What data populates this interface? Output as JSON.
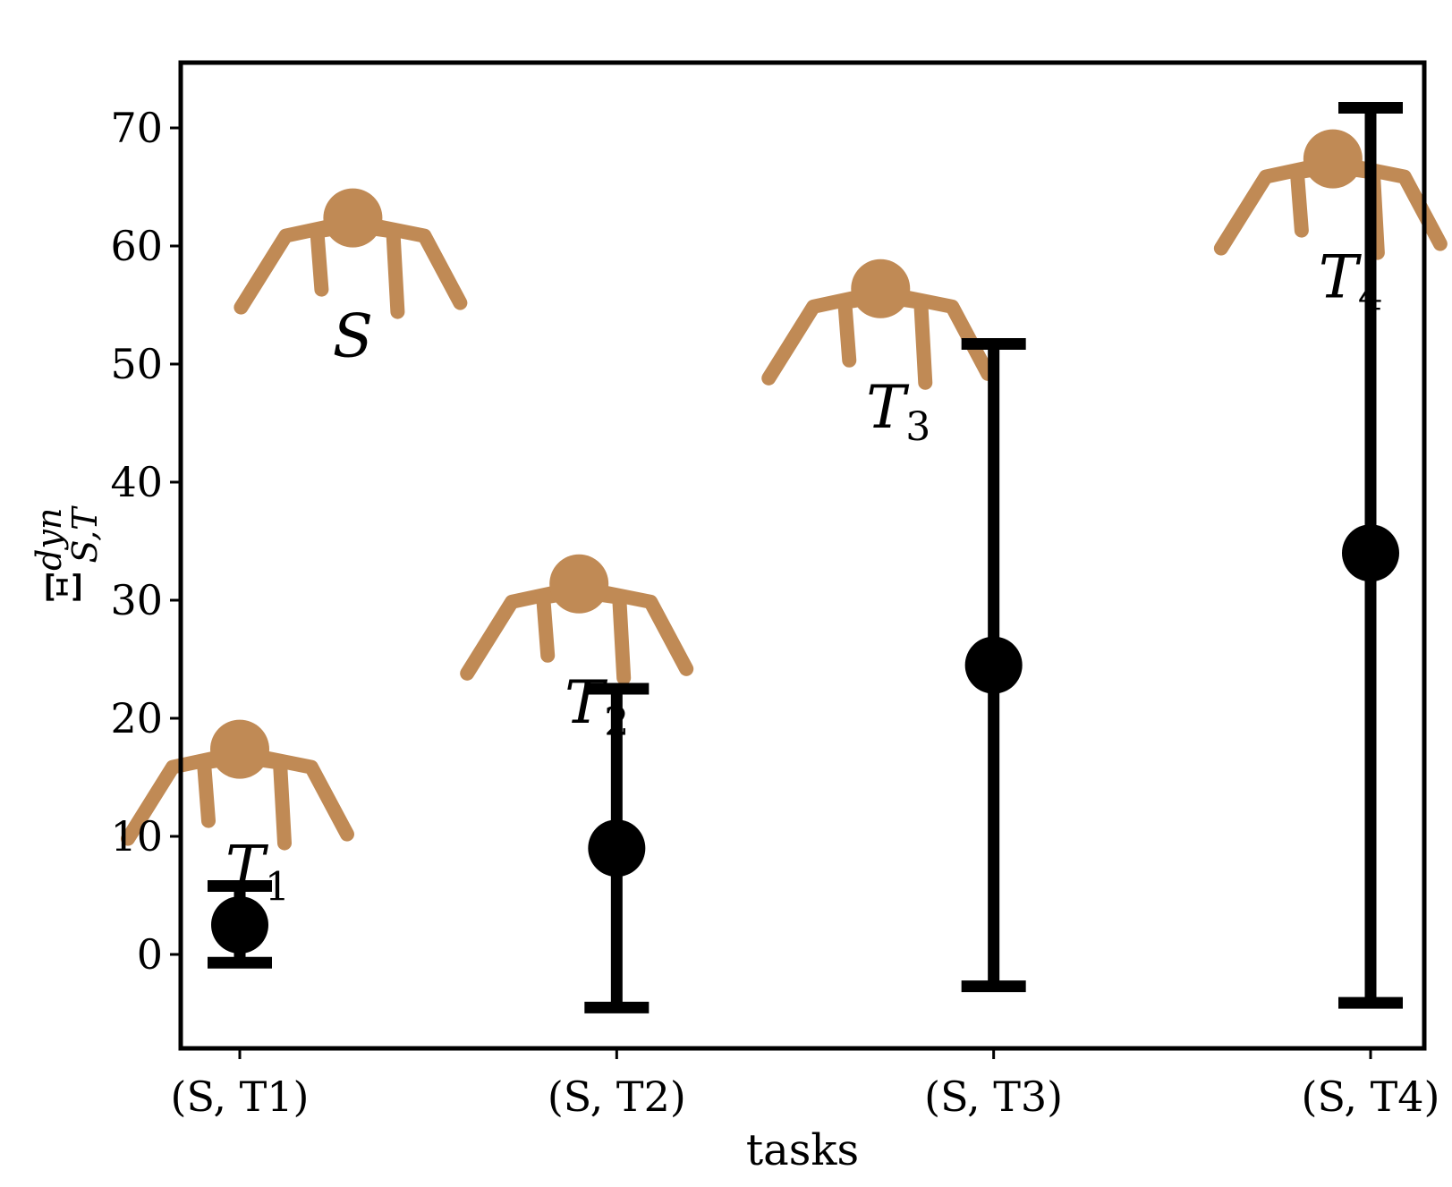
{
  "chart_data": {
    "type": "scatter",
    "xlabel": "tasks",
    "ylabel": "Ξ^{dyn}_{S,T}",
    "ylim": [
      -8,
      75
    ],
    "yticks": [
      0,
      10,
      20,
      30,
      40,
      50,
      60,
      70
    ],
    "ytick_labels": [
      "0",
      "10",
      "20",
      "30",
      "40",
      "50",
      "60",
      "70"
    ],
    "categories": [
      "(S, T1)",
      "(S, T2)",
      "(S, T3)",
      "(S, T4)"
    ],
    "series": [
      {
        "mean": [
          2.5,
          9.0,
          24.5,
          34.0
        ],
        "err_low": [
          -0.7,
          -4.5,
          -2.7,
          -4.1
        ],
        "err_high": [
          5.8,
          22.5,
          51.7,
          71.7
        ]
      }
    ],
    "grid": false,
    "marker_color": "#000000",
    "robot_color": "#C08A55",
    "robots": [
      {
        "label": "S",
        "anchor_x": 0.3,
        "anchor_y": 62
      },
      {
        "label": "T1",
        "anchor_x": 0.0,
        "anchor_y": 17
      },
      {
        "label": "T2",
        "anchor_x": 0.9,
        "anchor_y": 31
      },
      {
        "label": "T3",
        "anchor_x": 1.7,
        "anchor_y": 56
      },
      {
        "label": "T4",
        "anchor_x": 2.9,
        "anchor_y": 67
      }
    ]
  }
}
